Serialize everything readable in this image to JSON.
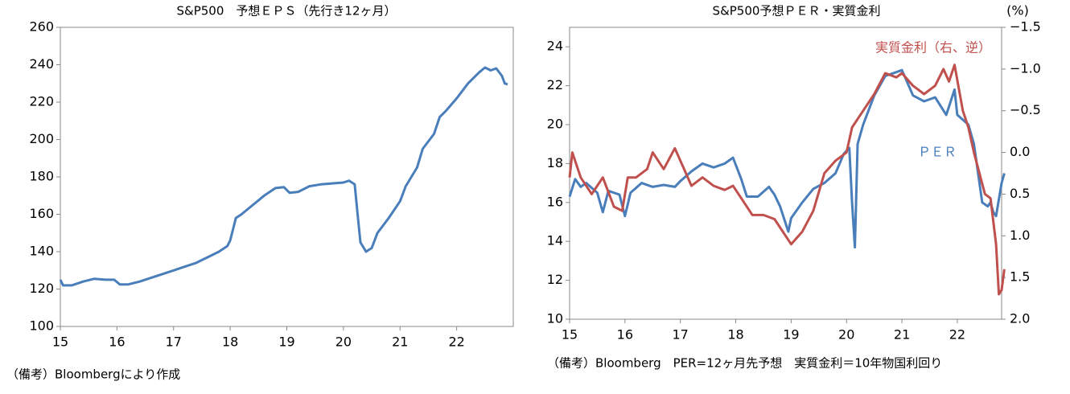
{
  "chart_data": [
    {
      "type": "line",
      "title": "S&P500　予想ＥＰＳ（先行き12ヶ月）",
      "note": "（備考）Bloombergにより作成",
      "xlim": [
        15,
        23
      ],
      "xticks": [
        15,
        16,
        17,
        18,
        19,
        20,
        21,
        22
      ],
      "ylim": [
        100,
        260
      ],
      "yticks": [
        100,
        120,
        140,
        160,
        180,
        200,
        220,
        240,
        260
      ],
      "series": [
        {
          "name": "EPS",
          "color": "#4a7ebb",
          "x": [
            15.0,
            15.05,
            15.2,
            15.4,
            15.6,
            15.8,
            15.95,
            16.05,
            16.2,
            16.4,
            16.6,
            16.8,
            17.0,
            17.2,
            17.4,
            17.6,
            17.8,
            17.95,
            18.0,
            18.1,
            18.2,
            18.4,
            18.6,
            18.8,
            18.95,
            19.05,
            19.2,
            19.4,
            19.6,
            19.8,
            20.0,
            20.1,
            20.2,
            20.25,
            20.3,
            20.4,
            20.5,
            20.6,
            20.8,
            21.0,
            21.1,
            21.3,
            21.4,
            21.6,
            21.7,
            21.8,
            22.0,
            22.2,
            22.4,
            22.5,
            22.6,
            22.7,
            22.8,
            22.85,
            22.9
          ],
          "values": [
            125,
            122,
            122,
            124,
            125.5,
            125,
            125,
            122.5,
            122.5,
            124,
            126,
            128,
            130,
            132,
            134,
            137,
            140,
            143,
            146,
            158,
            160,
            165,
            170,
            174,
            174.5,
            171.5,
            172,
            175,
            176,
            176.5,
            177,
            178,
            176,
            160,
            145,
            140,
            142,
            150,
            158,
            167,
            175,
            185,
            195,
            203,
            212,
            215,
            222,
            230,
            236,
            238.5,
            237,
            238,
            234,
            230,
            229.5
          ]
        }
      ]
    },
    {
      "type": "line",
      "title": "S&P500予想ＰＥＲ・実質金利",
      "note": "（備考）Bloomberg　PER=12ヶ月先予想　実質金利＝10年物国利回り",
      "y2_unit": "(%)",
      "xlim": [
        15,
        22.8
      ],
      "xticks": [
        15,
        16,
        17,
        18,
        19,
        20,
        21,
        22
      ],
      "ylim": [
        10,
        25
      ],
      "yticks": [
        10,
        12,
        14,
        16,
        18,
        20,
        22,
        24
      ],
      "y2lim": [
        -1.5,
        2.0
      ],
      "y2_inverted": true,
      "y2ticks": [
        {
          "value": -1.5,
          "label": "−1.5"
        },
        {
          "value": -1.0,
          "label": "−1.0"
        },
        {
          "value": -0.5,
          "label": "−0.5"
        },
        {
          "value": 0,
          "label": "0.0"
        },
        0.5,
        {
          "value": 1.0,
          "label": "1.0"
        },
        1.5,
        {
          "value": 2.0,
          "label": "2.0"
        }
      ],
      "series": [
        {
          "name": "ＰＥＲ",
          "color": "#4a7ebb",
          "x": [
            15.0,
            15.1,
            15.2,
            15.3,
            15.5,
            15.6,
            15.7,
            15.9,
            16.0,
            16.1,
            16.3,
            16.5,
            16.7,
            16.9,
            17.0,
            17.2,
            17.4,
            17.6,
            17.8,
            17.95,
            18.1,
            18.2,
            18.4,
            18.6,
            18.7,
            18.8,
            18.95,
            19.0,
            19.2,
            19.4,
            19.6,
            19.8,
            19.95,
            20.05,
            20.1,
            20.15,
            20.2,
            20.3,
            20.5,
            20.7,
            20.9,
            21.0,
            21.2,
            21.4,
            21.6,
            21.8,
            21.95,
            22.0,
            22.2,
            22.3,
            22.45,
            22.55,
            22.6,
            22.65,
            22.7,
            22.8,
            22.85
          ],
          "values": [
            16.3,
            17.2,
            16.8,
            17.0,
            16.5,
            15.5,
            16.6,
            16.4,
            15.3,
            16.5,
            17.0,
            16.8,
            16.9,
            16.8,
            17.1,
            17.6,
            18.0,
            17.8,
            18.0,
            18.3,
            17.2,
            16.3,
            16.3,
            16.8,
            16.4,
            15.8,
            14.5,
            15.2,
            16.0,
            16.7,
            17.0,
            17.5,
            18.5,
            18.8,
            16.0,
            13.7,
            19.0,
            20.0,
            21.5,
            22.5,
            22.7,
            22.8,
            21.5,
            21.2,
            21.4,
            20.5,
            21.8,
            20.5,
            20.0,
            19.0,
            16.0,
            15.8,
            16.0,
            15.5,
            15.3,
            17.0,
            17.5
          ]
        },
        {
          "name": "実質金利（右、逆）",
          "color": "#c0504d",
          "axis": "y2",
          "x": [
            15.0,
            15.05,
            15.2,
            15.4,
            15.6,
            15.8,
            15.95,
            16.05,
            16.2,
            16.4,
            16.5,
            16.7,
            16.9,
            17.0,
            17.2,
            17.4,
            17.6,
            17.8,
            17.95,
            18.1,
            18.3,
            18.5,
            18.7,
            18.9,
            19.0,
            19.2,
            19.4,
            19.6,
            19.8,
            20.0,
            20.1,
            20.2,
            20.3,
            20.5,
            20.7,
            20.9,
            21.0,
            21.2,
            21.4,
            21.6,
            21.75,
            21.85,
            21.95,
            22.1,
            22.2,
            22.3,
            22.5,
            22.6,
            22.7,
            22.75,
            22.8,
            22.85
          ],
          "values": [
            0.3,
            0.0,
            0.3,
            0.5,
            0.3,
            0.65,
            0.7,
            0.3,
            0.3,
            0.2,
            0.0,
            0.2,
            -0.05,
            0.1,
            0.4,
            0.3,
            0.4,
            0.45,
            0.4,
            0.55,
            0.75,
            0.75,
            0.8,
            1.0,
            1.1,
            0.95,
            0.7,
            0.25,
            0.1,
            0.0,
            -0.3,
            -0.4,
            -0.5,
            -0.7,
            -0.95,
            -0.9,
            -0.95,
            -0.8,
            -0.7,
            -0.8,
            -1.0,
            -0.85,
            -1.05,
            -0.5,
            -0.3,
            0.0,
            0.5,
            0.55,
            1.1,
            1.7,
            1.65,
            1.4
          ]
        }
      ]
    }
  ]
}
